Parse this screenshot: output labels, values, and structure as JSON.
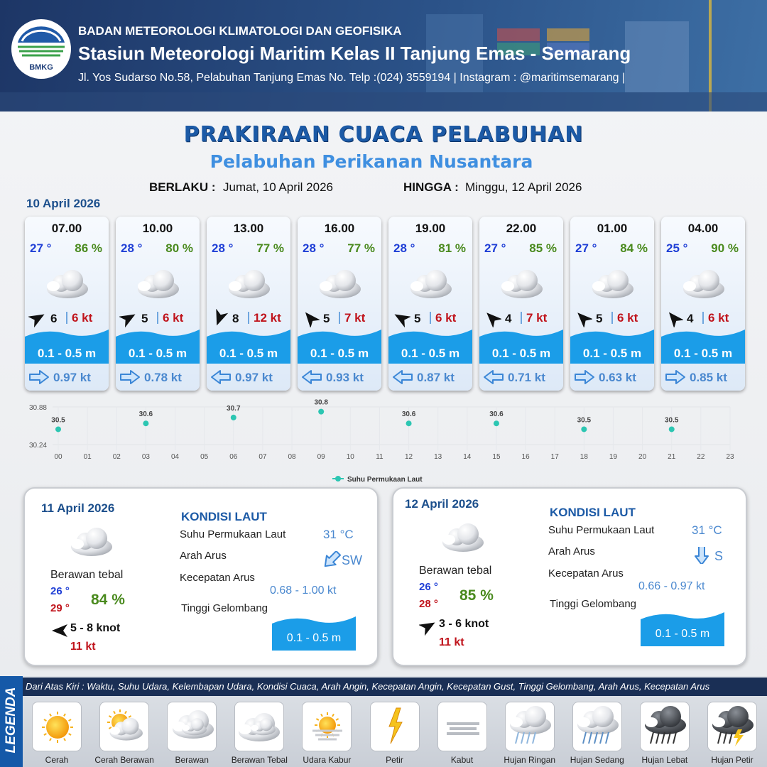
{
  "header": {
    "agency": "BADAN METEOROLOGI KLIMATOLOGI DAN GEOFISIKA",
    "station": "Stasiun Meteorologi Maritim Kelas II Tanjung Emas - Semarang",
    "address": "Jl. Yos Sudarso No.58, Pelabuhan Tanjung Emas No. Telp :(024) 3559194 | Instagram : @maritimsemarang |",
    "logo": "BMKG"
  },
  "title": "PRAKIRAAN CUACA PELABUHAN",
  "subtitle": "Pelabuhan Perikanan Nusantara",
  "validity": {
    "from_label": "BERLAKU :",
    "from": "Jumat, 10 April 2026",
    "to_label": "HINGGA :",
    "to": "Minggu, 12 April 2026"
  },
  "today": {
    "date": "10 April 2026",
    "forecasts": [
      {
        "time": "07.00",
        "temp": "27 °",
        "humidity": "86 %",
        "wind": "6",
        "gust": "6 kt",
        "wave": "0.1 - 0.5 m",
        "current": "0.97 kt"
      },
      {
        "time": "10.00",
        "temp": "28 °",
        "humidity": "80 %",
        "wind": "5",
        "gust": "6 kt",
        "wave": "0.1 - 0.5 m",
        "current": "0.78 kt"
      },
      {
        "time": "13.00",
        "temp": "28 °",
        "humidity": "77 %",
        "wind": "8",
        "gust": "12 kt",
        "wave": "0.1 - 0.5 m",
        "current": "0.97 kt"
      },
      {
        "time": "16.00",
        "temp": "28 °",
        "humidity": "77 %",
        "wind": "5",
        "gust": "7 kt",
        "wave": "0.1 - 0.5 m",
        "current": "0.93 kt"
      },
      {
        "time": "19.00",
        "temp": "28 °",
        "humidity": "81 %",
        "wind": "5",
        "gust": "6 kt",
        "wave": "0.1 - 0.5 m",
        "current": "0.87 kt"
      },
      {
        "time": "22.00",
        "temp": "27 °",
        "humidity": "85 %",
        "wind": "4",
        "gust": "7 kt",
        "wave": "0.1 - 0.5 m",
        "current": "0.71 kt"
      },
      {
        "time": "01.00",
        "temp": "27 °",
        "humidity": "84 %",
        "wind": "5",
        "gust": "6 kt",
        "wave": "0.1 - 0.5 m",
        "current": "0.63 kt"
      },
      {
        "time": "04.00",
        "temp": "25 °",
        "humidity": "90 %",
        "wind": "4",
        "gust": "6 kt",
        "wave": "0.1 - 0.5 m",
        "current": "0.85 kt"
      }
    ]
  },
  "chart_data": {
    "type": "scatter",
    "x": [
      0,
      3,
      6,
      9,
      12,
      15,
      18,
      21
    ],
    "series": [
      {
        "name": "Suhu Permukaan Laut",
        "color": "#2cc6b2",
        "values": [
          30.5,
          30.6,
          30.7,
          30.8,
          30.6,
          30.6,
          30.5,
          30.5
        ]
      }
    ],
    "xlim": [
      0,
      23
    ],
    "xticks": [
      {
        "value": 0,
        "label": "00"
      },
      {
        "value": 1,
        "label": "01"
      },
      {
        "value": 2,
        "label": "02"
      },
      {
        "value": 3,
        "label": "03"
      },
      {
        "value": 4,
        "label": "04"
      },
      {
        "value": 5,
        "label": "05"
      },
      {
        "value": 6,
        "label": "06"
      },
      {
        "value": 7,
        "label": "07"
      },
      {
        "value": 8,
        "label": "08"
      },
      {
        "value": 9,
        "label": "09"
      },
      10,
      11,
      12,
      13,
      14,
      15,
      16,
      17,
      18,
      19,
      20,
      21,
      22,
      23
    ],
    "ylim": [
      30.24,
      30.88
    ],
    "yticks": [
      30.24,
      30.88
    ],
    "grid": true
  },
  "days": [
    {
      "date": "11 April 2026",
      "condition": "Berawan tebal",
      "temp_min": "26 °",
      "temp_max": "29 °",
      "humidity": "84 %",
      "wind": "5 - 8 knot",
      "gust": "11 kt",
      "sea_title": "KONDISI LAUT",
      "sst_label": "Suhu Permukaan Laut",
      "sst": "31 °C",
      "current_dir_label": "Arah Arus",
      "current_dir": "SW",
      "current_speed_label": "Kecepatan Arus",
      "current_speed": "0.68 - 1.00 kt",
      "wave_label": "Tinggi Gelombang",
      "wave": "0.1 - 0.5 m"
    },
    {
      "date": "12 April 2026",
      "condition": "Berawan tebal",
      "temp_min": "26 °",
      "temp_max": "28 °",
      "humidity": "85 %",
      "wind": "3 - 6 knot",
      "gust": "11 kt",
      "sea_title": "KONDISI LAUT",
      "sst_label": "Suhu Permukaan Laut",
      "sst": "31 °C",
      "current_dir_label": "Arah Arus",
      "current_dir": "S",
      "current_speed_label": "Kecepatan Arus",
      "current_speed": "0.66 - 0.97 kt",
      "wave_label": "Tinggi Gelombang",
      "wave": "0.1 - 0.5 m"
    }
  ],
  "legend": {
    "title": "LEGENDA",
    "description": "Dari Atas Kiri : Waktu, Suhu Udara, Kelembapan Udara, Kondisi Cuaca, Arah Angin, Kecepatan Angin, Kecepatan Gust, Tinggi Gelombang, Arah Arus, Kecepatan Arus",
    "items": [
      "Cerah",
      "Cerah Berawan",
      "Berawan",
      "Berawan Tebal",
      "Udara Kabur",
      "Petir",
      "Kabut",
      "Hujan Ringan",
      "Hujan Sedang",
      "Hujan Lebat",
      "Hujan Petir"
    ]
  }
}
